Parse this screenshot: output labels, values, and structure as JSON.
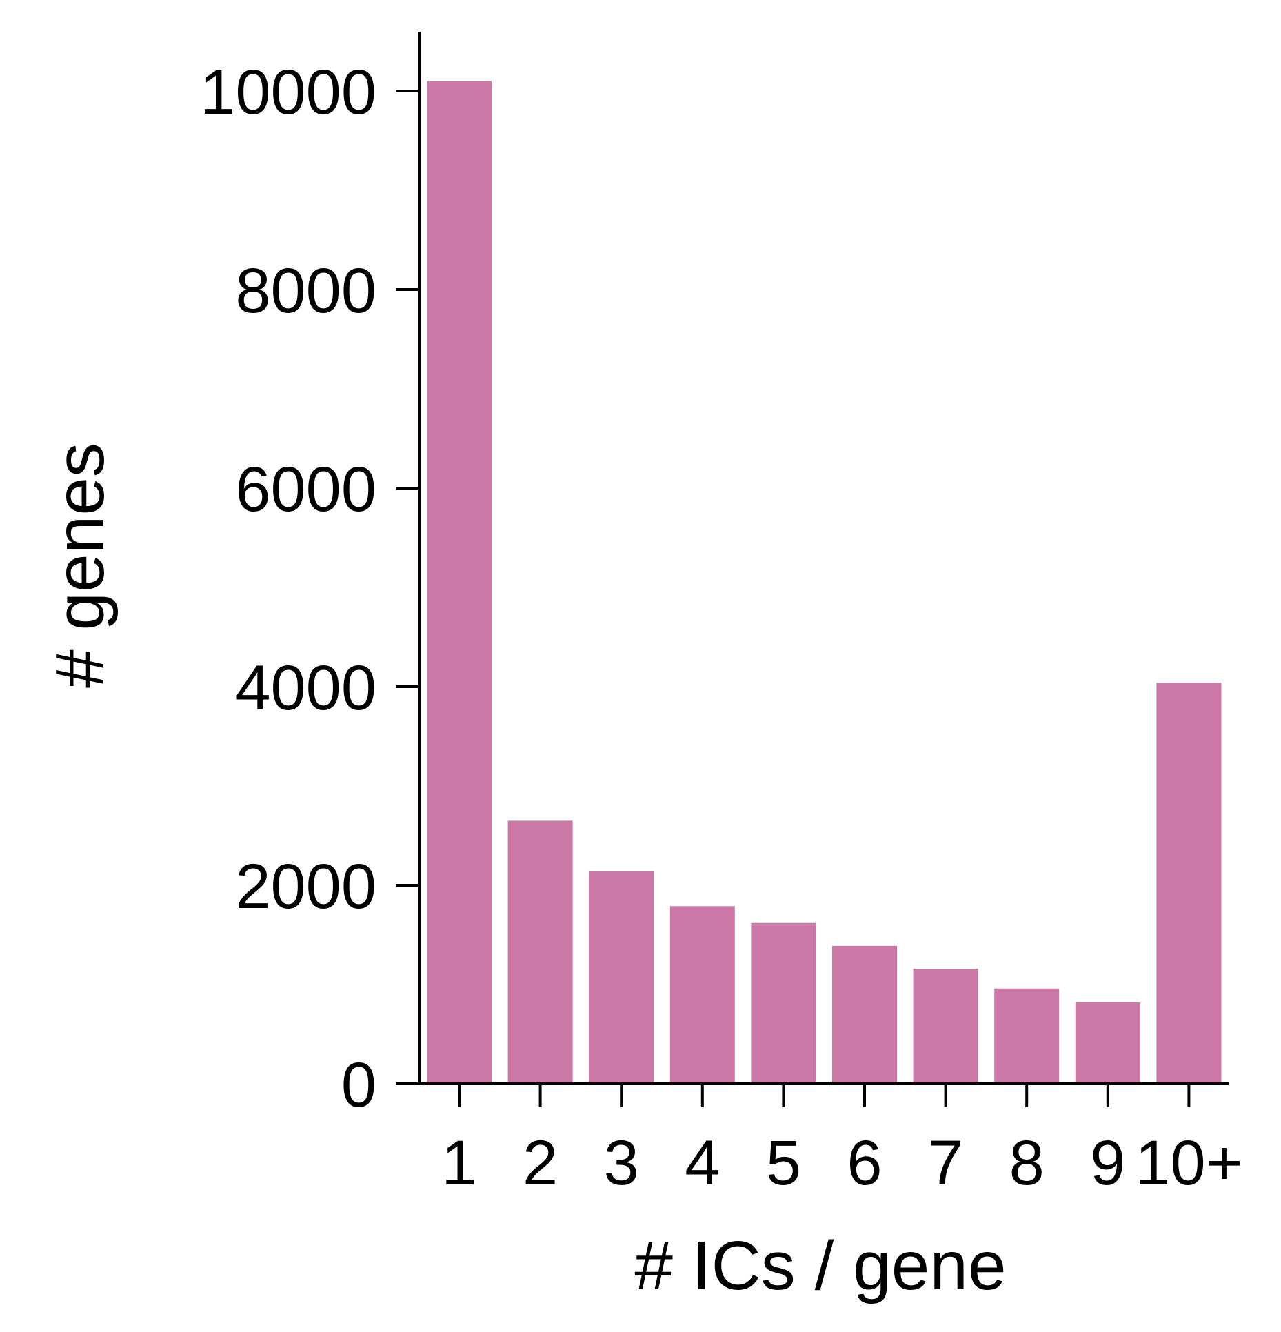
{
  "chart_data": {
    "type": "bar",
    "categories": [
      "1",
      "2",
      "3",
      "4",
      "5",
      "6",
      "7",
      "8",
      "9",
      "10+"
    ],
    "values": [
      10100,
      2650,
      2140,
      1790,
      1620,
      1390,
      1160,
      960,
      820,
      4040
    ],
    "xlabel": "# ICs / gene",
    "ylabel": "# genes",
    "ylim": [
      0,
      10600
    ],
    "yticks": [
      0,
      2000,
      4000,
      6000,
      8000,
      10000
    ],
    "bar_color": "#cc79a7",
    "axis_color": "#000000",
    "grid": false
  }
}
